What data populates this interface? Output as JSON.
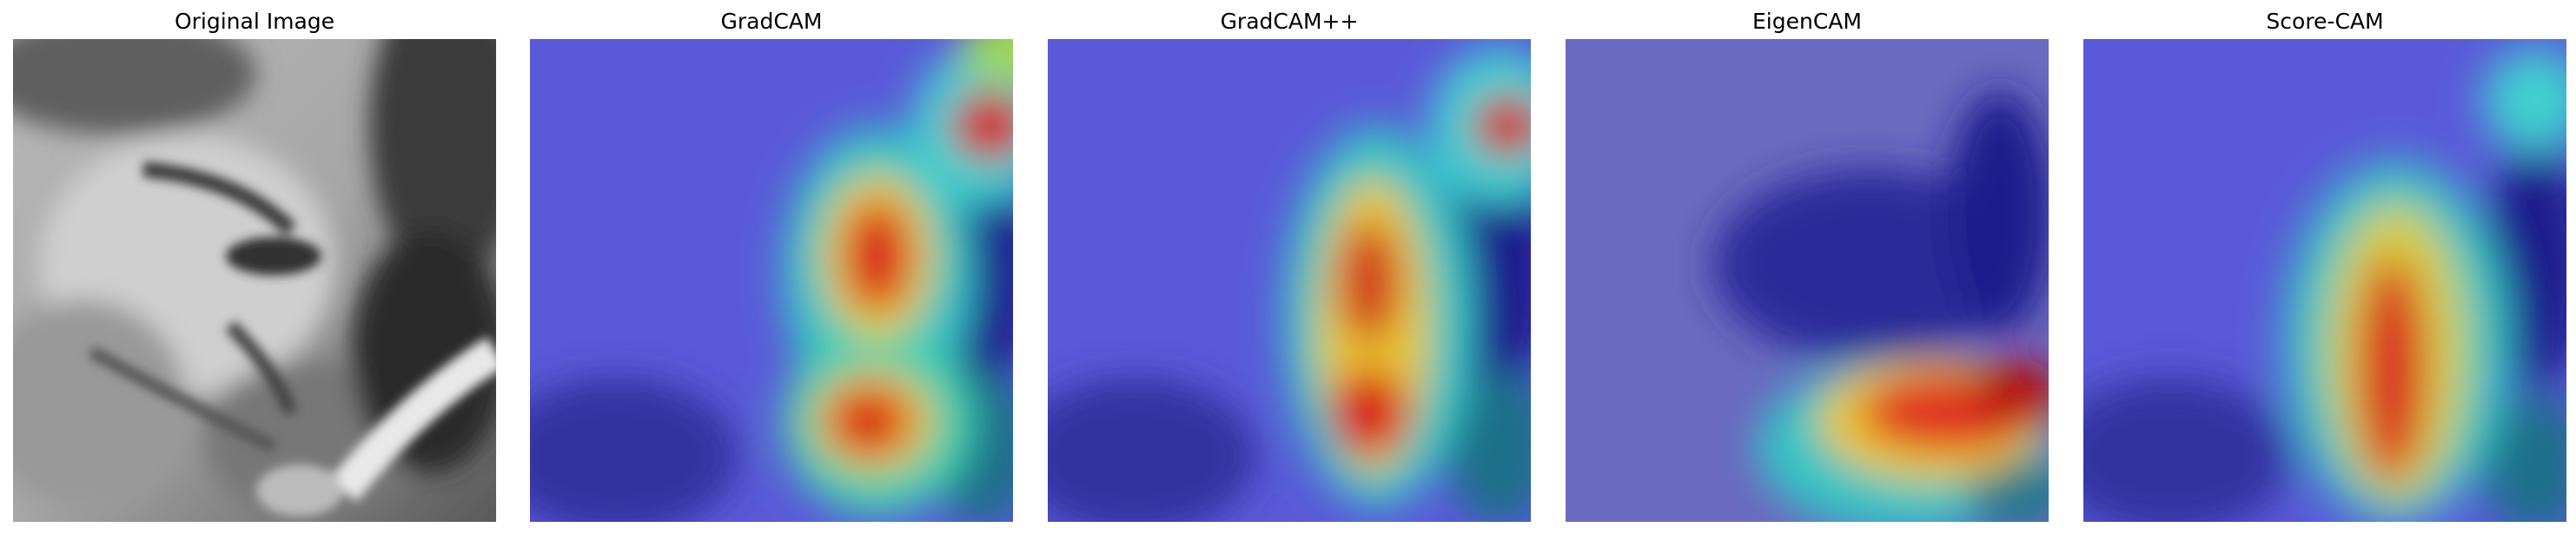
{
  "panels": [
    {
      "title": "Original Image",
      "kind": "grayscale-face-photo"
    },
    {
      "title": "GradCAM",
      "kind": "heatmap-overlay"
    },
    {
      "title": "GradCAM++",
      "kind": "heatmap-overlay"
    },
    {
      "title": "EigenCAM",
      "kind": "heatmap-overlay"
    },
    {
      "title": "Score-CAM",
      "kind": "heatmap-overlay"
    }
  ],
  "colormap": {
    "low": "#1a1aa0",
    "mid": "#37d4d4",
    "high": "#d81818"
  }
}
